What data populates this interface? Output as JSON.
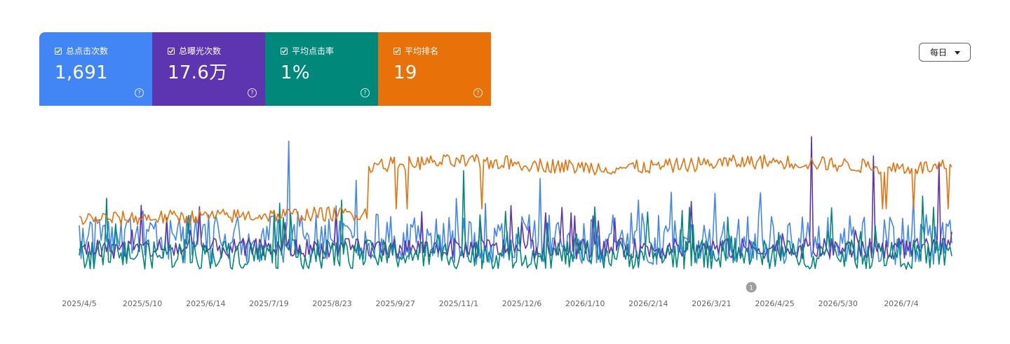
{
  "metrics": [
    {
      "label": "总点击次数",
      "value": "1,691",
      "color": "#4285f4",
      "help": "?"
    },
    {
      "label": "总曝光次数",
      "value": "17.6万",
      "color": "#5e35b1",
      "help": "?"
    },
    {
      "label": "平均点击率",
      "value": "1%",
      "color": "#00897b",
      "help": "?"
    },
    {
      "label": "平均排名",
      "value": "19",
      "color": "#e8710a",
      "help": "?"
    }
  ],
  "granularity": {
    "selected": "每日"
  },
  "annotation": {
    "label": "1",
    "date": "2026/4/12"
  },
  "chart_data": {
    "type": "line",
    "x_start": "2025/4/5",
    "x_end": "2026/8/1",
    "x_tick_labels": [
      "2025/4/5",
      "2025/5/10",
      "2025/6/14",
      "2025/7/19",
      "2025/8/23",
      "2025/9/27",
      "2025/11/1",
      "2025/12/6",
      "2026/1/10",
      "2026/2/14",
      "2026/3/21",
      "2026/4/25",
      "2026/5/30",
      "2026/7/4"
    ],
    "grid": false,
    "legend": "top",
    "series": [
      {
        "name": "总点击次数",
        "color": "#4285f4",
        "level": 0.28,
        "noise": 0.17,
        "spikes": [
          [
            0.24,
            0.95
          ],
          [
            0.78,
            0.6
          ],
          [
            0.64,
            0.55
          ]
        ]
      },
      {
        "name": "总曝光次数",
        "color": "#5e35b1",
        "level": 0.22,
        "noise": 0.07,
        "spikes": [
          [
            0.84,
            0.98
          ],
          [
            0.91,
            0.85
          ],
          [
            0.985,
            0.8
          ]
        ]
      },
      {
        "name": "平均点击率",
        "color": "#00897b",
        "level": 0.18,
        "noise": 0.1,
        "spikes": [
          [
            0.44,
            0.75
          ],
          [
            0.3,
            0.55
          ],
          [
            0.7,
            0.5
          ]
        ]
      },
      {
        "name": "平均排名",
        "color": "#e8710a",
        "level_early": 0.42,
        "level_late": 0.79,
        "change_at": 0.33,
        "noise": 0.05
      }
    ]
  }
}
